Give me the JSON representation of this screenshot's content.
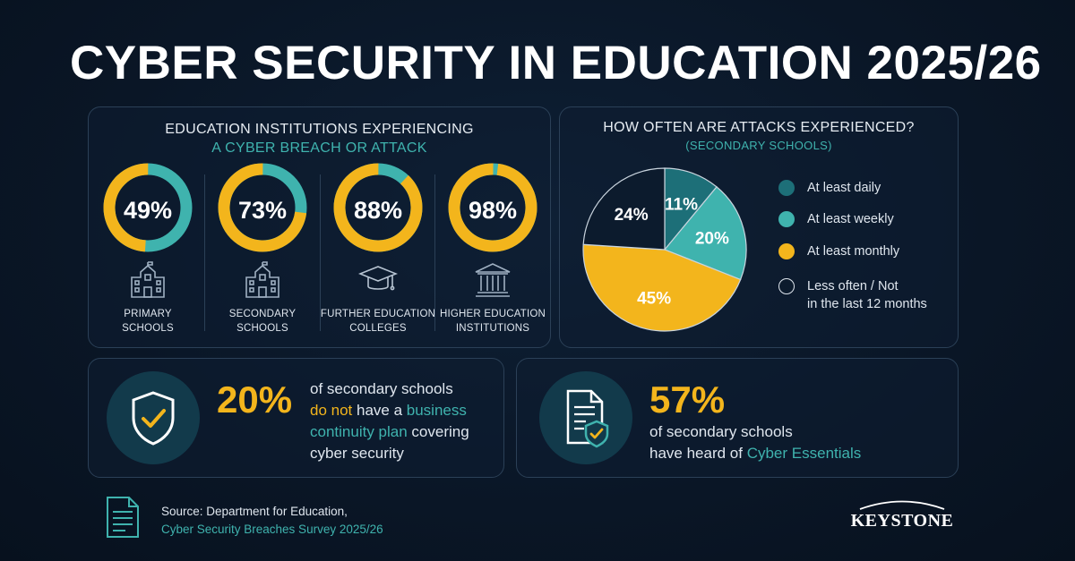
{
  "title": "CYBER SECURITY IN EDUCATION 2025/26",
  "colors": {
    "teal": "#3fb3ae",
    "dark_teal": "#1d6f78",
    "gold": "#f3b51c",
    "navy": "#0c1b2d",
    "background": "#0a1626"
  },
  "rings_panel": {
    "heading_line1": "EDUCATION INSTITUTIONS EXPERIENCING",
    "heading_line2": "A CYBER BREACH OR ATTACK"
  },
  "source": {
    "line1": "Source: Department for Education,",
    "line2": "Cyber Security Breaches Survey 2025/26",
    "icon": "document-icon"
  },
  "logo_text": "KEYSTONE",
  "stat_continuity": {
    "value": "20%",
    "icon": "shield-check-icon",
    "t1": "of secondary schools",
    "t2a": "do not",
    "t2b": " have a ",
    "t2c": "business",
    "t3a": "continuity plan",
    "t3b": " covering",
    "t4": "cyber security"
  },
  "stat_essentials": {
    "value": "57%",
    "icon": "document-shield-icon",
    "t1": "of secondary schools",
    "t2a": "have heard of ",
    "t2b": "Cyber Essentials"
  },
  "chart_data": [
    {
      "type": "pie",
      "variant": "donut-set",
      "title": "EDUCATION INSTITUTIONS EXPERIENCING A CYBER BREACH OR ATTACK",
      "categories": [
        "PRIMARY SCHOOLS",
        "SECONDARY SCHOOLS",
        "FURTHER EDUCATION COLLEGES",
        "HIGHER EDUCATION INSTITUTIONS"
      ],
      "labels": [
        "PRIMARY\nSCHOOLS",
        "SECONDARY\nSCHOOLS",
        "FURTHER EDUCATION\nCOLLEGES",
        "HIGHER EDUCATION\nINSTITUTIONS"
      ],
      "values": [
        49,
        73,
        88,
        98
      ],
      "value_labels": [
        "49%",
        "73%",
        "88%",
        "98%"
      ],
      "icons": [
        "school-building-icon",
        "school-building-icon",
        "graduation-cap-icon",
        "university-columns-icon"
      ],
      "fill_color": "#f3b51c",
      "remainder_color": "#3fb3ae"
    },
    {
      "type": "pie",
      "title": "HOW OFTEN ARE ATTACKS EXPERIENCED?",
      "subtitle": "(SECONDARY SCHOOLS)",
      "categories": [
        "At least daily",
        "At least weekly",
        "At least monthly",
        "Less often / Not in the last 12 months"
      ],
      "legend_labels": [
        "At least daily",
        "At least weekly",
        "At least monthly",
        "Less often / Not\nin the last 12 months"
      ],
      "values": [
        11,
        20,
        45,
        24
      ],
      "value_labels": [
        "11%",
        "20%",
        "45%",
        "24%"
      ],
      "colors": [
        "#1d6f78",
        "#3fb3ae",
        "#f3b51c",
        "#0c1b2d"
      ],
      "legend_position": "right"
    }
  ]
}
